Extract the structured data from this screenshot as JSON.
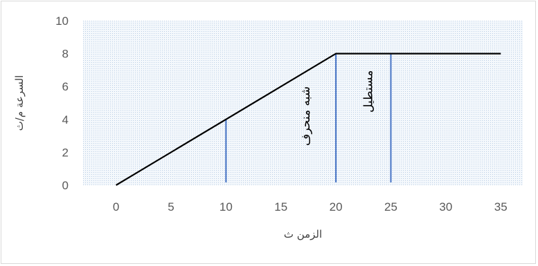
{
  "chart_data": {
    "type": "line",
    "xlabel": "الزمن ث",
    "ylabel": "السرعة م/ث",
    "xlim": [
      -3,
      37
    ],
    "ylim": [
      0,
      10
    ],
    "xticks": [
      0,
      5,
      10,
      15,
      20,
      25,
      30,
      35
    ],
    "yticks": [
      0,
      2,
      4,
      6,
      8,
      10
    ],
    "grid": false,
    "plot_area_fill": "dotted-light-blue",
    "series": [
      {
        "x": [
          0,
          20,
          35
        ],
        "y": [
          0,
          8,
          8
        ],
        "color": "#000000"
      }
    ],
    "vertical_lines": [
      {
        "x": 10,
        "y_top": 4,
        "color": "#4472c4"
      },
      {
        "x": 20,
        "y_top": 8,
        "color": "#4472c4"
      },
      {
        "x": 25,
        "y_top": 8,
        "color": "#4472c4"
      }
    ],
    "annotations": [
      {
        "text": "شبه منحرف",
        "x": 17.6,
        "y": 4.2
      },
      {
        "text": "مستطيل",
        "x": 23.3,
        "y": 5.7
      }
    ]
  }
}
